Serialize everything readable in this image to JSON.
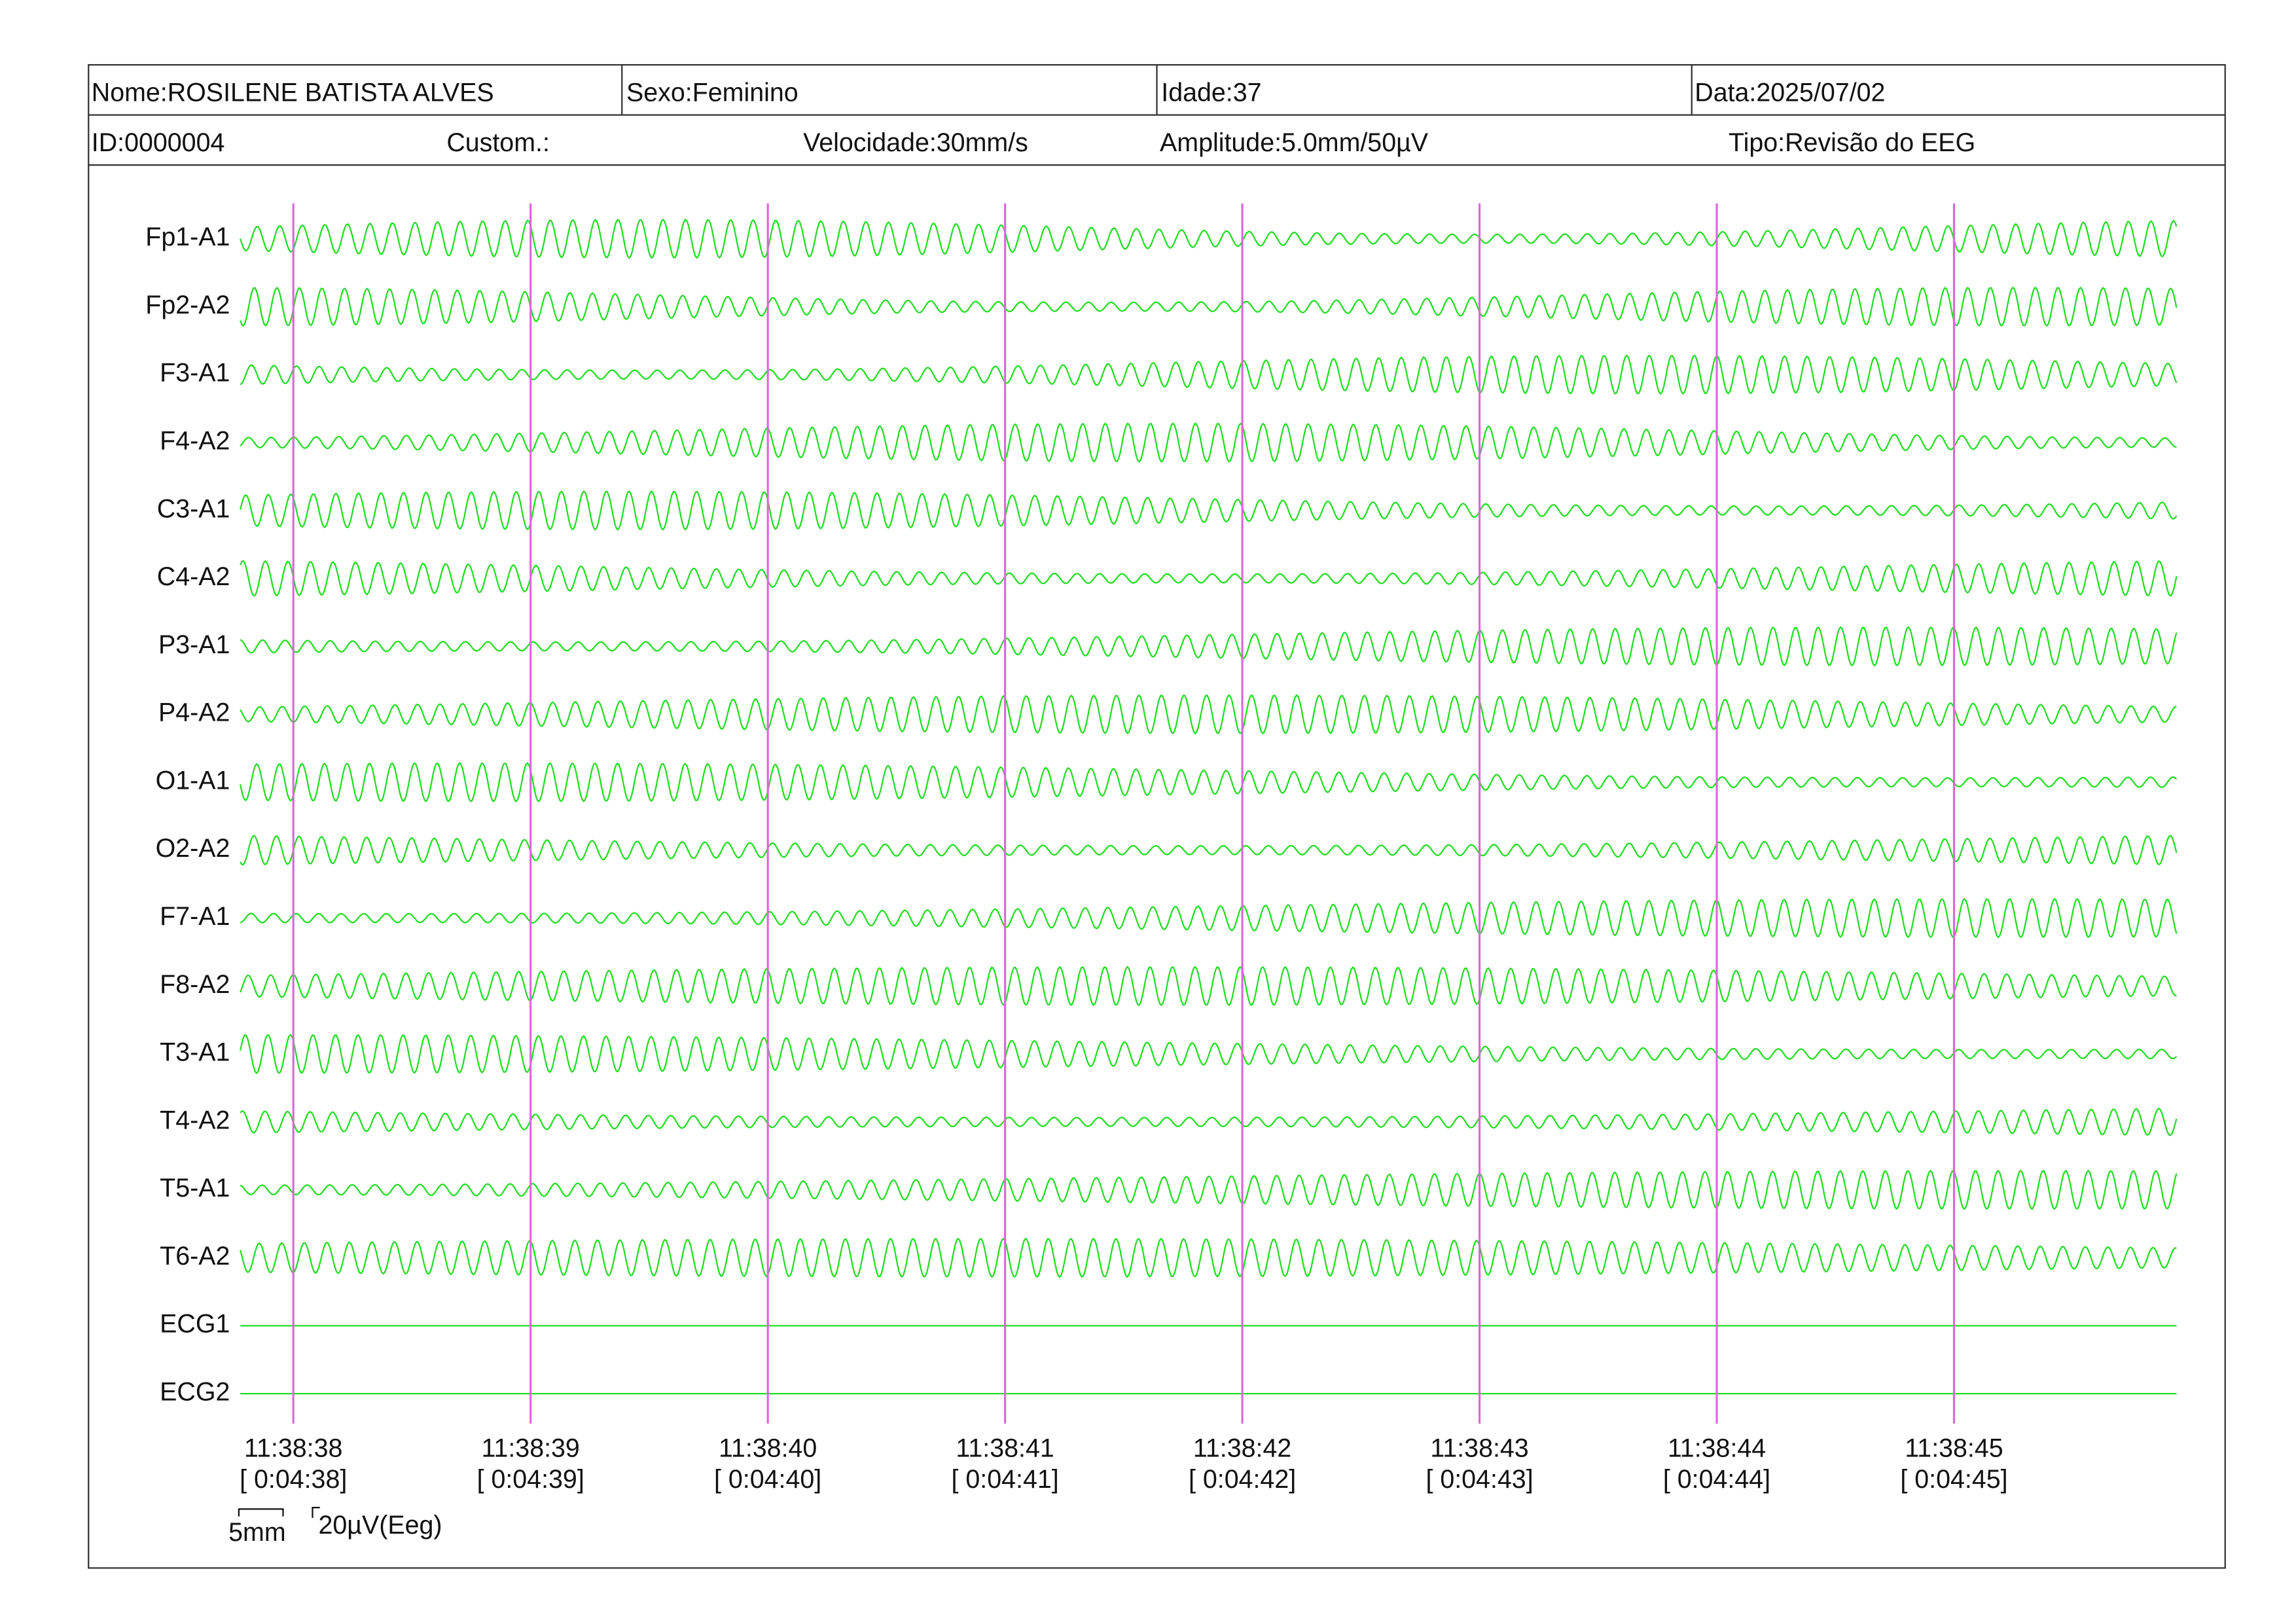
{
  "header": {
    "name": "Nome:ROSILENE BATISTA ALVES",
    "sex": "Sexo:Feminino",
    "age": "Idade:37",
    "date": "Data:2025/07/02",
    "id": "ID:0000004",
    "custom": "Custom.:",
    "speed": "Velocidade:30mm/s",
    "amplitude": "Amplitude:5.0mm/50µV",
    "type": "Tipo:Revisão do EEG"
  },
  "channels": [
    "Fp1-A1",
    "Fp2-A2",
    "F3-A1",
    "F4-A2",
    "C3-A1",
    "C4-A2",
    "P3-A1",
    "P4-A2",
    "O1-A1",
    "O2-A2",
    "F7-A1",
    "F8-A2",
    "T3-A1",
    "T4-A2",
    "T5-A1",
    "T6-A2",
    "ECG1",
    "ECG2"
  ],
  "times": [
    {
      "time": "11:38:38",
      "elapsed": "[ 0:04:38]"
    },
    {
      "time": "11:38:39",
      "elapsed": "[ 0:04:39]"
    },
    {
      "time": "11:38:40",
      "elapsed": "[ 0:04:40]"
    },
    {
      "time": "11:38:41",
      "elapsed": "[ 0:04:41]"
    },
    {
      "time": "11:38:42",
      "elapsed": "[ 0:04:42]"
    },
    {
      "time": "11:38:43",
      "elapsed": "[ 0:04:43]"
    },
    {
      "time": "11:38:44",
      "elapsed": "[ 0:04:44]"
    },
    {
      "time": "11:38:45",
      "elapsed": "[ 0:04:45]"
    }
  ],
  "scale": {
    "horizontal": "5mm",
    "vertical": "20µV(Eeg)"
  }
}
